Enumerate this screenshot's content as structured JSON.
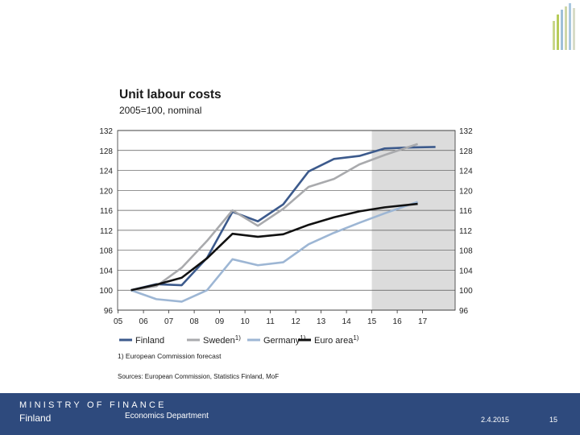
{
  "title": "Unit labour costs",
  "subtitle": "2005=100, nominal",
  "chart_data": {
    "type": "line",
    "title": "Unit labour costs",
    "subtitle": "2005=100, nominal",
    "x_tick_labels": [
      "05",
      "06",
      "07",
      "08",
      "09",
      "10",
      "11",
      "12",
      "13",
      "14",
      "15",
      "16",
      "17"
    ],
    "ylim": [
      96,
      132
    ],
    "y_ticks": [
      96,
      100,
      104,
      108,
      112,
      116,
      120,
      124,
      128,
      132
    ],
    "grid": true,
    "forecast_shaded_from": 15,
    "legend_position": "bottom",
    "series": [
      {
        "name": "Finland",
        "color": "#3c5a8c",
        "x": [
          5,
          6,
          7,
          8,
          9,
          10,
          11,
          12,
          13,
          14,
          15,
          16,
          17
        ],
        "y": [
          100,
          101.2,
          101,
          106.5,
          115.7,
          113.8,
          117.2,
          123.8,
          126.3,
          126.9,
          128.4,
          128.6,
          128.7
        ]
      },
      {
        "name": "Sweden",
        "color": "#a9aaad",
        "x": [
          5,
          6,
          7,
          8,
          9,
          10,
          11,
          12,
          13,
          14,
          15,
          16.3
        ],
        "y": [
          100,
          100.8,
          104.5,
          109.9,
          116,
          112.9,
          116.3,
          120.7,
          122.3,
          125.2,
          127.1,
          129.3
        ]
      },
      {
        "name": "Germany",
        "color": "#9db6d4",
        "x": [
          5,
          6,
          7,
          8,
          9,
          10,
          11,
          12,
          13,
          14,
          15,
          16.3
        ],
        "y": [
          100,
          98.2,
          97.7,
          100,
          106.2,
          105,
          105.6,
          109.2,
          111.5,
          113.5,
          115.4,
          117.7
        ]
      },
      {
        "name": "Euro area",
        "color": "#111111",
        "x": [
          5,
          6,
          7,
          8,
          9,
          10,
          11,
          12,
          13,
          14,
          15,
          16.3
        ],
        "y": [
          100,
          101.1,
          102.5,
          106.4,
          111.3,
          110.7,
          111.2,
          113.1,
          114.6,
          115.8,
          116.6,
          117.3
        ]
      }
    ],
    "legend": [
      {
        "label": "Finland",
        "sup": ""
      },
      {
        "label": "Sweden",
        "sup": "1)"
      },
      {
        "label": "Germany",
        "sup": "1)"
      },
      {
        "label": "Euro area",
        "sup": "1)"
      }
    ]
  },
  "footnote": "1) European Commission forecast",
  "sources": "Sources: European Commission, Statistics Finland, MoF",
  "footer": {
    "ministry": "MINISTRY OF FINANCE",
    "country": "Finland",
    "department": "Economics Department",
    "date": "2.4.2015",
    "page": "15"
  },
  "colors": {
    "footer_bg": "#2e4a7d",
    "forecast_shade": "#dcdcdc"
  }
}
